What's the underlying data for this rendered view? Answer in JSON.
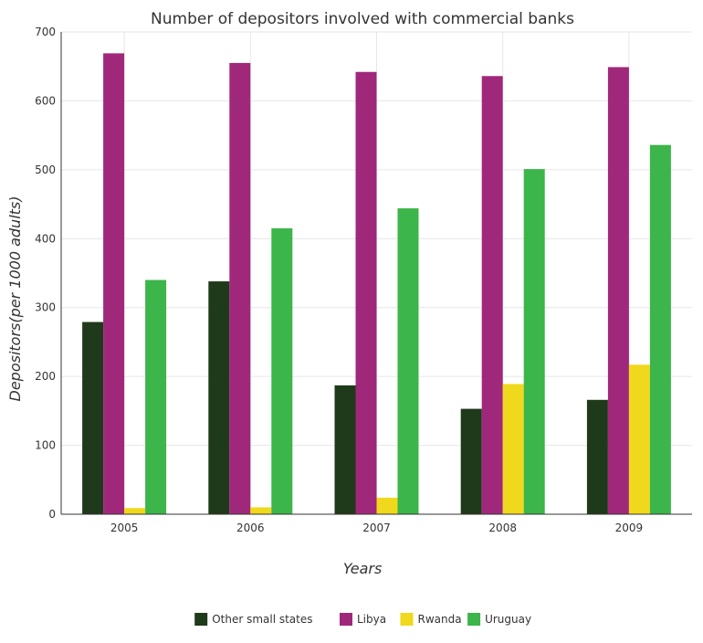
{
  "chart_data": {
    "type": "bar",
    "title": "Number of depositors involved with commercial banks",
    "xlabel": "Years",
    "ylabel": "Depositors(per 1000 adults)",
    "categories": [
      "2005",
      "2006",
      "2007",
      "2008",
      "2009"
    ],
    "ylim": [
      0,
      700
    ],
    "yticks": [
      0,
      100,
      200,
      300,
      400,
      500,
      600,
      700
    ],
    "grid": true,
    "legend_position": "bottom-center",
    "series": [
      {
        "name": "Other small states",
        "color": "#1f3a1a",
        "values": [
          279,
          338,
          187,
          153,
          166
        ]
      },
      {
        "name": "Libya",
        "color": "#a0287a",
        "values": [
          669,
          655,
          642,
          636,
          649
        ]
      },
      {
        "name": "Rwanda",
        "color": "#f0d81c",
        "values": [
          9,
          10,
          24,
          189,
          217
        ]
      },
      {
        "name": "Uruguay",
        "color": "#3cb54a",
        "values": [
          340,
          415,
          444,
          501,
          536
        ]
      }
    ]
  }
}
